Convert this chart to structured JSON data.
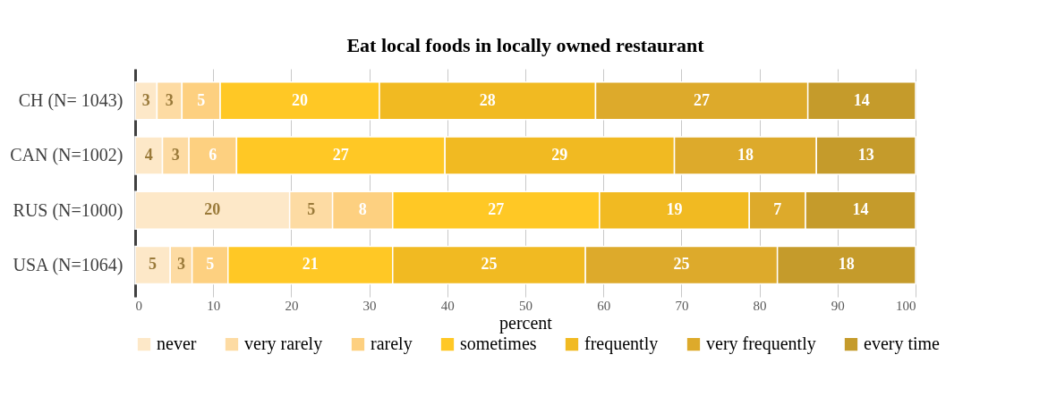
{
  "chart_data": {
    "type": "bar",
    "orientation": "horizontal",
    "stacked": true,
    "title": "Eat local foods in locally owned restaurant",
    "xlabel": "percent",
    "categories": [
      "CH (N= 1043)",
      "CAN (N=1002)",
      "RUS (N=1000)",
      "USA (N=1064)"
    ],
    "series": [
      {
        "name": "never",
        "color": "#fde8c8",
        "values": [
          2.8,
          3.5,
          19.8,
          4.5
        ],
        "value_labels": [
          "3",
          "4",
          "20",
          "5"
        ]
      },
      {
        "name": "very rarely",
        "color": "#fddba3",
        "values": [
          3.2,
          3.4,
          5.5,
          2.8
        ],
        "value_labels": [
          "3",
          "3",
          "5",
          "3"
        ]
      },
      {
        "name": "rarely",
        "color": "#fdd080",
        "values": [
          4.9,
          6.1,
          7.7,
          4.6
        ],
        "value_labels": [
          "5",
          "6",
          "8",
          "5"
        ]
      },
      {
        "name": "sometimes",
        "color": "#ffc825",
        "values": [
          20.4,
          26.7,
          26.5,
          21.1
        ],
        "value_labels": [
          "20",
          "27",
          "27",
          "21"
        ]
      },
      {
        "name": "frequently",
        "color": "#f1ba22",
        "values": [
          27.7,
          29.4,
          19.2,
          24.7
        ],
        "value_labels": [
          "28",
          "29",
          "19",
          "25"
        ]
      },
      {
        "name": "very frequently",
        "color": "#ddaa2b",
        "values": [
          27.2,
          18.2,
          7.2,
          24.6
        ],
        "value_labels": [
          "27",
          "18",
          "7",
          "25"
        ]
      },
      {
        "name": "every time",
        "color": "#c59b2b",
        "values": [
          13.8,
          12.7,
          14.1,
          17.7
        ],
        "value_labels": [
          "14",
          "13",
          "14",
          "18"
        ]
      }
    ],
    "xlim": [
      0,
      100
    ],
    "xticks": [
      0,
      10,
      20,
      30,
      40,
      50,
      60,
      70,
      80,
      90,
      100
    ],
    "grid": "x",
    "legend": "bottom"
  }
}
